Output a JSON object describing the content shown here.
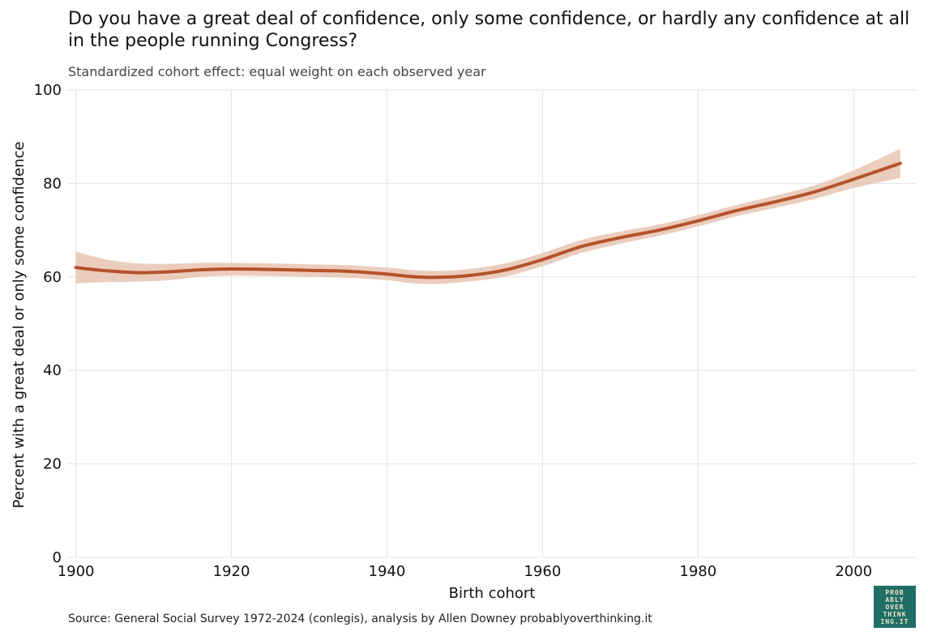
{
  "header": {
    "title": "Do you have a great deal of confidence, only some confidence, or hardly any confidence at all in the people running Congress?",
    "subtitle": "Standardized cohort effect: equal weight on each observed year"
  },
  "footer": {
    "source": "Source: General Social Survey 1972-2024 (conlegis), analysis by Allen Downey probablyoverthinking.it"
  },
  "logo": {
    "lines": [
      "PROB",
      "ABLY",
      "OVER",
      "THINK",
      "ING.IT"
    ],
    "bg_color": "#1f6f67",
    "text_color": "#f2e6c9"
  },
  "chart_data": {
    "type": "line",
    "xlabel": "Birth cohort",
    "ylabel": "Percent with a great deal or only some confidence",
    "xlim": [
      1899,
      2008
    ],
    "ylim": [
      0,
      100
    ],
    "x_ticks": [
      1900,
      1920,
      1940,
      1960,
      1980,
      2000
    ],
    "y_ticks": [
      0,
      20,
      40,
      60,
      80,
      100
    ],
    "grid": true,
    "line_color": "#b5522a",
    "band_color": "#e8c4b2",
    "series": [
      {
        "x": [
          1900,
          1904,
          1908,
          1912,
          1916,
          1920,
          1925,
          1930,
          1935,
          1940,
          1943,
          1946,
          1950,
          1955,
          1960,
          1965,
          1970,
          1975,
          1980,
          1985,
          1990,
          1995,
          2000,
          2006
        ],
        "y": [
          62.0,
          61.3,
          60.9,
          61.1,
          61.5,
          61.7,
          61.6,
          61.4,
          61.2,
          60.6,
          60.1,
          59.9,
          60.2,
          61.4,
          63.7,
          66.5,
          68.4,
          70.0,
          72.0,
          74.2,
          76.1,
          78.2,
          80.9,
          84.3
        ],
        "lower": [
          58.6,
          58.9,
          59.0,
          59.3,
          60.0,
          60.3,
          60.2,
          60.0,
          59.8,
          59.3,
          58.7,
          58.5,
          58.9,
          60.0,
          62.3,
          65.1,
          67.1,
          68.8,
          70.8,
          73.0,
          74.8,
          76.7,
          79.0,
          81.2
        ],
        "upper": [
          65.4,
          63.7,
          62.9,
          62.8,
          63.0,
          63.0,
          62.9,
          62.7,
          62.5,
          62.0,
          61.5,
          61.3,
          61.6,
          62.8,
          65.1,
          67.9,
          69.7,
          71.2,
          73.2,
          75.4,
          77.4,
          79.6,
          82.8,
          87.4
        ]
      }
    ]
  }
}
